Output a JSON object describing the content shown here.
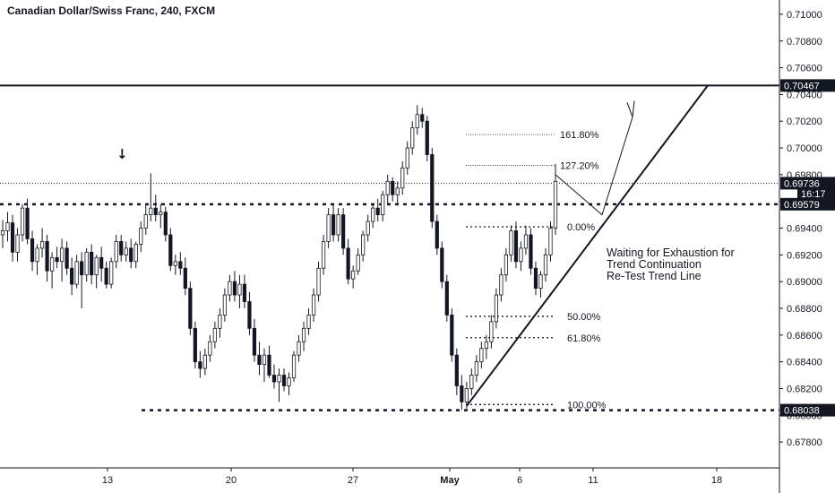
{
  "header": {
    "title": "Canadian Dollar/Swiss Franc, 240, FXCM"
  },
  "annotation": {
    "lines": [
      "Waiting for Exhaustion for",
      "Trend Continuation",
      "Re-Test Trend Line"
    ],
    "arrow_symbol": "↓"
  },
  "price_axis": {
    "ticks": [
      "0.71000",
      "0.70800",
      "0.70600",
      "0.70400",
      "0.70200",
      "0.70000",
      "0.69800",
      "0.69600",
      "0.69400",
      "0.69200",
      "0.69000",
      "0.68800",
      "0.68600",
      "0.68400",
      "0.68200",
      "0.68000",
      "0.67800"
    ],
    "current_time": "16:17"
  },
  "time_axis": {
    "labels": [
      "13",
      "20",
      "27",
      "May",
      "6",
      "11",
      "18"
    ]
  },
  "chart_data": {
    "type": "candlestick",
    "title": "Canadian Dollar/Swiss Franc, 240, FXCM",
    "ylim": [
      0.677,
      0.7108
    ],
    "x_labels": [
      "13",
      "20",
      "27",
      "May",
      "6",
      "11",
      "18"
    ],
    "horizontal_levels": [
      {
        "label": "0.70467",
        "value": 0.70467,
        "style": "solid"
      },
      {
        "label": "0.69736",
        "value": 0.69736,
        "style": "dotted"
      },
      {
        "label": "0.69579",
        "value": 0.69579,
        "style": "dashed"
      },
      {
        "label": "0.68038",
        "value": 0.68038,
        "style": "dashed"
      }
    ],
    "fibonacci": [
      {
        "label": "161.80%",
        "value": 0.701
      },
      {
        "label": "127.20%",
        "value": 0.6987
      },
      {
        "label": "0.00%",
        "value": 0.6941
      },
      {
        "label": "50.00%",
        "value": 0.6874
      },
      {
        "label": "61.80%",
        "value": 0.6858
      },
      {
        "label": "100.00%",
        "value": 0.6808
      }
    ],
    "bull_color": "#ffffff",
    "bear_color": "#131722",
    "ohlc": [
      [
        0.6935,
        0.6946,
        0.6925,
        0.6938
      ],
      [
        0.6938,
        0.6952,
        0.693,
        0.6944
      ],
      [
        0.6944,
        0.695,
        0.6915,
        0.6922
      ],
      [
        0.6922,
        0.694,
        0.6915,
        0.6935
      ],
      [
        0.6935,
        0.6958,
        0.693,
        0.6955
      ],
      [
        0.6955,
        0.6962,
        0.6928,
        0.6932
      ],
      [
        0.6932,
        0.6938,
        0.6908,
        0.6915
      ],
      [
        0.6915,
        0.6928,
        0.6905,
        0.6925
      ],
      [
        0.6925,
        0.694,
        0.6918,
        0.693
      ],
      [
        0.693,
        0.6935,
        0.69,
        0.6908
      ],
      [
        0.6908,
        0.6922,
        0.6895,
        0.6918
      ],
      [
        0.6918,
        0.6926,
        0.691,
        0.6915
      ],
      [
        0.6915,
        0.6932,
        0.69,
        0.6925
      ],
      [
        0.6925,
        0.693,
        0.6905,
        0.691
      ],
      [
        0.691,
        0.6918,
        0.689,
        0.6898
      ],
      [
        0.6898,
        0.692,
        0.6895,
        0.6915
      ],
      [
        0.6915,
        0.6922,
        0.688,
        0.6905
      ],
      [
        0.6905,
        0.6925,
        0.69,
        0.6922
      ],
      [
        0.6922,
        0.6928,
        0.6898,
        0.6905
      ],
      [
        0.6905,
        0.692,
        0.6895,
        0.6918
      ],
      [
        0.6918,
        0.6926,
        0.69,
        0.691
      ],
      [
        0.691,
        0.6915,
        0.6895,
        0.6898
      ],
      [
        0.6898,
        0.6918,
        0.6895,
        0.6915
      ],
      [
        0.6915,
        0.6935,
        0.691,
        0.693
      ],
      [
        0.693,
        0.6935,
        0.6915,
        0.692
      ],
      [
        0.692,
        0.693,
        0.6915,
        0.6925
      ],
      [
        0.6925,
        0.6932,
        0.691,
        0.6915
      ],
      [
        0.6915,
        0.693,
        0.691,
        0.6928
      ],
      [
        0.6928,
        0.6945,
        0.6922,
        0.694
      ],
      [
        0.694,
        0.6958,
        0.6935,
        0.695
      ],
      [
        0.695,
        0.6981,
        0.6945,
        0.6955
      ],
      [
        0.6955,
        0.6965,
        0.6945,
        0.695
      ],
      [
        0.695,
        0.6958,
        0.694,
        0.6952
      ],
      [
        0.6952,
        0.6956,
        0.693,
        0.6935
      ],
      [
        0.6935,
        0.694,
        0.6908,
        0.6912
      ],
      [
        0.6912,
        0.692,
        0.6905,
        0.6915
      ],
      [
        0.6915,
        0.6922,
        0.6905,
        0.691
      ],
      [
        0.691,
        0.6918,
        0.689,
        0.6895
      ],
      [
        0.6895,
        0.69,
        0.686,
        0.6865
      ],
      [
        0.6865,
        0.687,
        0.6835,
        0.684
      ],
      [
        0.684,
        0.6848,
        0.6828,
        0.6835
      ],
      [
        0.6835,
        0.685,
        0.683,
        0.6845
      ],
      [
        0.6845,
        0.686,
        0.684,
        0.6855
      ],
      [
        0.6855,
        0.687,
        0.685,
        0.6865
      ],
      [
        0.6865,
        0.688,
        0.6858,
        0.6875
      ],
      [
        0.6875,
        0.6895,
        0.687,
        0.689
      ],
      [
        0.689,
        0.6905,
        0.6885,
        0.69
      ],
      [
        0.69,
        0.6908,
        0.6885,
        0.689
      ],
      [
        0.689,
        0.6905,
        0.688,
        0.6898
      ],
      [
        0.6898,
        0.6905,
        0.688,
        0.6885
      ],
      [
        0.6885,
        0.6892,
        0.686,
        0.6865
      ],
      [
        0.6865,
        0.6872,
        0.684,
        0.6845
      ],
      [
        0.6845,
        0.6855,
        0.683,
        0.6838
      ],
      [
        0.6838,
        0.685,
        0.6825,
        0.6845
      ],
      [
        0.6845,
        0.6852,
        0.6828,
        0.683
      ],
      [
        0.683,
        0.6838,
        0.682,
        0.6825
      ],
      [
        0.6825,
        0.6835,
        0.681,
        0.683
      ],
      [
        0.683,
        0.6835,
        0.6818,
        0.6822
      ],
      [
        0.6822,
        0.6832,
        0.6815,
        0.6828
      ],
      [
        0.6828,
        0.6848,
        0.6825,
        0.6845
      ],
      [
        0.6845,
        0.686,
        0.684,
        0.6855
      ],
      [
        0.6855,
        0.687,
        0.6848,
        0.6865
      ],
      [
        0.6865,
        0.688,
        0.686,
        0.6875
      ],
      [
        0.6875,
        0.6895,
        0.687,
        0.689
      ],
      [
        0.689,
        0.6915,
        0.6885,
        0.691
      ],
      [
        0.691,
        0.6935,
        0.6905,
        0.693
      ],
      [
        0.693,
        0.6955,
        0.6925,
        0.695
      ],
      [
        0.695,
        0.6958,
        0.693,
        0.6935
      ],
      [
        0.6935,
        0.6955,
        0.693,
        0.695
      ],
      [
        0.695,
        0.6955,
        0.692,
        0.6925
      ],
      [
        0.6925,
        0.6932,
        0.6898,
        0.6902
      ],
      [
        0.6902,
        0.6912,
        0.6895,
        0.6908
      ],
      [
        0.6908,
        0.6925,
        0.6905,
        0.692
      ],
      [
        0.692,
        0.6938,
        0.6915,
        0.6935
      ],
      [
        0.6935,
        0.695,
        0.693,
        0.6945
      ],
      [
        0.6945,
        0.6958,
        0.694,
        0.6955
      ],
      [
        0.6955,
        0.6962,
        0.6945,
        0.695
      ],
      [
        0.695,
        0.6968,
        0.6945,
        0.6965
      ],
      [
        0.6965,
        0.698,
        0.6958,
        0.6975
      ],
      [
        0.6975,
        0.6978,
        0.696,
        0.6965
      ],
      [
        0.6965,
        0.6975,
        0.6958,
        0.697
      ],
      [
        0.697,
        0.699,
        0.6965,
        0.6985
      ],
      [
        0.6985,
        0.7005,
        0.698,
        0.7
      ],
      [
        0.7,
        0.702,
        0.6995,
        0.7015
      ],
      [
        0.7015,
        0.7032,
        0.701,
        0.7025
      ],
      [
        0.7025,
        0.703,
        0.7015,
        0.702
      ],
      [
        0.702,
        0.7024,
        0.699,
        0.6995
      ],
      [
        0.6995,
        0.7,
        0.694,
        0.6945
      ],
      [
        0.6945,
        0.695,
        0.692,
        0.6925
      ],
      [
        0.6925,
        0.693,
        0.6895,
        0.69
      ],
      [
        0.69,
        0.6905,
        0.687,
        0.6875
      ],
      [
        0.6875,
        0.688,
        0.684,
        0.6845
      ],
      [
        0.6845,
        0.685,
        0.6815,
        0.6822
      ],
      [
        0.6822,
        0.683,
        0.6804,
        0.681
      ],
      [
        0.681,
        0.6825,
        0.6805,
        0.682
      ],
      [
        0.682,
        0.6835,
        0.6815,
        0.683
      ],
      [
        0.683,
        0.6845,
        0.6825,
        0.684
      ],
      [
        0.684,
        0.6855,
        0.6835,
        0.685
      ],
      [
        0.685,
        0.686,
        0.6842,
        0.6855
      ],
      [
        0.6855,
        0.6875,
        0.685,
        0.687
      ],
      [
        0.687,
        0.6895,
        0.6865,
        0.689
      ],
      [
        0.689,
        0.691,
        0.6885,
        0.6905
      ],
      [
        0.6905,
        0.6925,
        0.69,
        0.692
      ],
      [
        0.692,
        0.6942,
        0.6915,
        0.6938
      ],
      [
        0.6938,
        0.6945,
        0.691,
        0.6915
      ],
      [
        0.6915,
        0.693,
        0.6908,
        0.6925
      ],
      [
        0.6925,
        0.6942,
        0.692,
        0.6935
      ],
      [
        0.6935,
        0.694,
        0.6905,
        0.691
      ],
      [
        0.691,
        0.6915,
        0.689,
        0.6895
      ],
      [
        0.6895,
        0.6908,
        0.6888,
        0.6905
      ],
      [
        0.6905,
        0.6925,
        0.69,
        0.692
      ],
      [
        0.692,
        0.6945,
        0.6915,
        0.694
      ],
      [
        0.694,
        0.6988,
        0.6935,
        0.6975
      ]
    ]
  }
}
